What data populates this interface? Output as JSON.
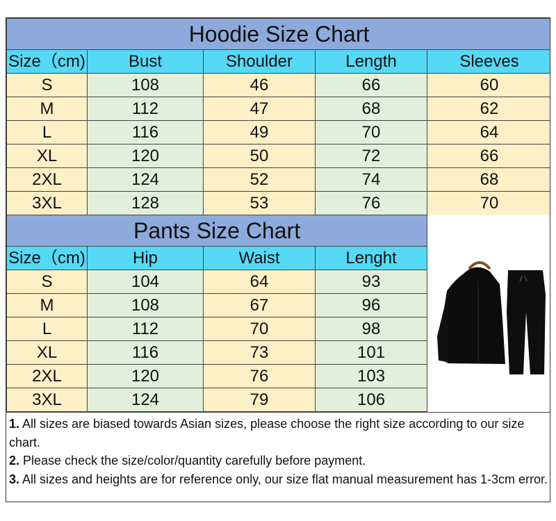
{
  "hoodie": {
    "title": "Hoodie Size Chart",
    "headers": [
      "Size（cm)",
      "Bust",
      "Shoulder",
      "Length",
      "Sleeves"
    ],
    "rows": [
      [
        "S",
        "108",
        "46",
        "66",
        "60"
      ],
      [
        "M",
        "112",
        "47",
        "68",
        "62"
      ],
      [
        "L",
        "116",
        "49",
        "70",
        "64"
      ],
      [
        "XL",
        "120",
        "50",
        "72",
        "66"
      ],
      [
        "2XL",
        "124",
        "52",
        "74",
        "68"
      ],
      [
        "3XL",
        "128",
        "53",
        "76",
        "70"
      ]
    ]
  },
  "pants": {
    "title": "Pants Size Chart",
    "headers": [
      "Size（cm)",
      "Hip",
      "Waist",
      "Lenght"
    ],
    "rows": [
      [
        "S",
        "104",
        "64",
        "93"
      ],
      [
        "M",
        "108",
        "67",
        "96"
      ],
      [
        "L",
        "112",
        "70",
        "98"
      ],
      [
        "XL",
        "116",
        "73",
        "101"
      ],
      [
        "2XL",
        "120",
        "76",
        "103"
      ],
      [
        "3XL",
        "124",
        "79",
        "106"
      ]
    ]
  },
  "notes": [
    {
      "num": "1.",
      "text": " All sizes are biased towards Asian sizes, please choose the right size according to our size chart."
    },
    {
      "num": "2.",
      "text": " Please check the size/color/quantity carefully before payment."
    },
    {
      "num": "3.",
      "text": " All sizes and heights are for reference only, our size flat manual measurement has 1-3cm error."
    }
  ],
  "colors": {
    "title_bg": "#8eaadc",
    "header_bg": "#55d9f7",
    "cell_yellow": "#fdefc6",
    "cell_green": "#e2efda"
  },
  "photo": {
    "icon": "black-hoodie-and-pants-tracksuit-image"
  }
}
